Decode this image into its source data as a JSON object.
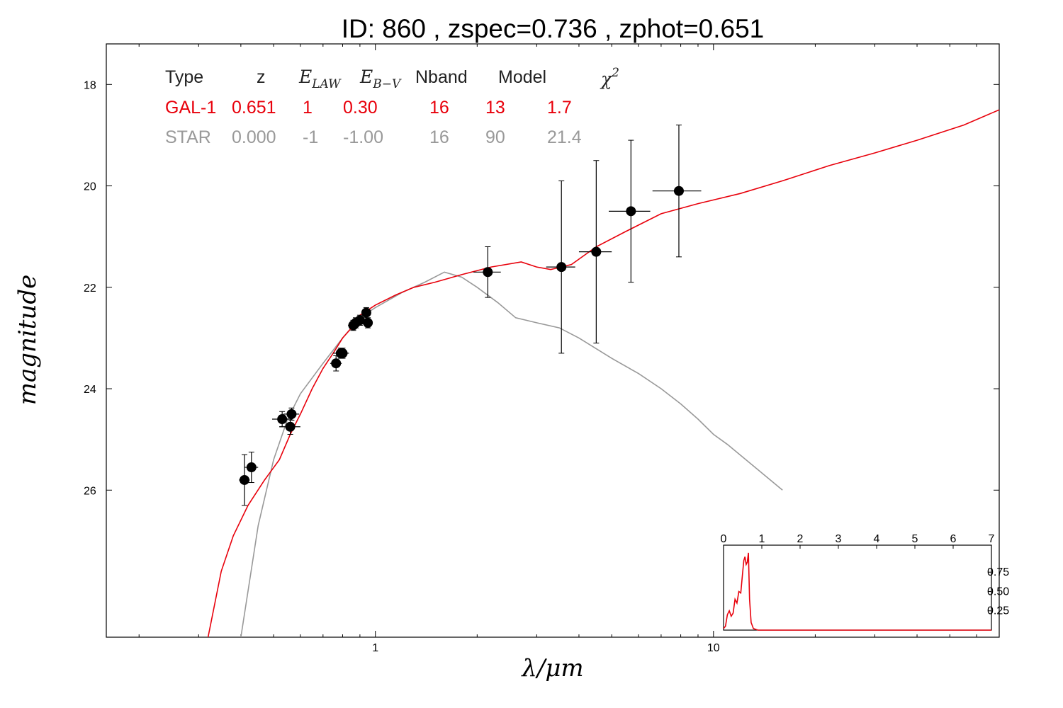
{
  "chart_data": {
    "type": "line",
    "title": "ID:  860   , zspec=0.736 , zphot=0.651",
    "xlabel": "λ/μm",
    "ylabel": "magnitude",
    "x_scale": "log",
    "xlim": [
      0.16,
      70
    ],
    "ylim": [
      28.9,
      17.2
    ],
    "x_tick_labels": [
      {
        "value": 1,
        "label": "1"
      },
      {
        "value": 10,
        "label": "10"
      }
    ],
    "y_ticks": [
      18,
      20,
      22,
      24,
      26
    ],
    "table": {
      "headers": [
        "Type",
        "z",
        "E",
        "E",
        "Nband",
        "Model",
        "χ"
      ],
      "header_subscripts": [
        "",
        "",
        "LAW",
        "B−V",
        "",
        "",
        ""
      ],
      "header_superscripts": [
        "",
        "",
        "",
        "",
        "",
        "",
        "2"
      ],
      "rows": [
        {
          "color": "#e8000b",
          "cells": [
            "GAL-1",
            "0.651",
            "1",
            "0.30",
            "16",
            "13",
            "1.7"
          ]
        },
        {
          "color": "#999999",
          "cells": [
            "STAR",
            "0.000",
            "-1",
            "-1.00",
            "16",
            "90",
            "21.4"
          ]
        }
      ]
    },
    "series": [
      {
        "color": "#e8000b",
        "points": [
          [
            0.32,
            28.9
          ],
          [
            0.35,
            27.6
          ],
          [
            0.38,
            26.9
          ],
          [
            0.42,
            26.3
          ],
          [
            0.47,
            25.8
          ],
          [
            0.52,
            25.4
          ],
          [
            0.56,
            24.9
          ],
          [
            0.6,
            24.5
          ],
          [
            0.65,
            24.0
          ],
          [
            0.7,
            23.6
          ],
          [
            0.75,
            23.3
          ],
          [
            0.8,
            23.0
          ],
          [
            0.85,
            22.8
          ],
          [
            0.9,
            22.55
          ],
          [
            1.0,
            22.35
          ],
          [
            1.15,
            22.15
          ],
          [
            1.3,
            22.0
          ],
          [
            1.5,
            21.9
          ],
          [
            1.8,
            21.75
          ],
          [
            2.2,
            21.6
          ],
          [
            2.7,
            21.5
          ],
          [
            3.0,
            21.6
          ],
          [
            3.3,
            21.65
          ],
          [
            3.8,
            21.55
          ],
          [
            4.5,
            21.2
          ],
          [
            5.5,
            20.9
          ],
          [
            7.0,
            20.55
          ],
          [
            9.0,
            20.35
          ],
          [
            12.0,
            20.15
          ],
          [
            16.0,
            19.9
          ],
          [
            22.0,
            19.6
          ],
          [
            30.0,
            19.35
          ],
          [
            40.0,
            19.1
          ],
          [
            55.0,
            18.8
          ],
          [
            70.0,
            18.5
          ]
        ]
      },
      {
        "color": "#999999",
        "points": [
          [
            0.4,
            28.9
          ],
          [
            0.45,
            26.7
          ],
          [
            0.5,
            25.4
          ],
          [
            0.55,
            24.6
          ],
          [
            0.6,
            24.1
          ],
          [
            0.7,
            23.5
          ],
          [
            0.8,
            23.0
          ],
          [
            0.9,
            22.6
          ],
          [
            1.0,
            22.4
          ],
          [
            1.2,
            22.1
          ],
          [
            1.4,
            21.9
          ],
          [
            1.6,
            21.7
          ],
          [
            1.8,
            21.8
          ],
          [
            2.0,
            22.0
          ],
          [
            2.3,
            22.3
          ],
          [
            2.6,
            22.6
          ],
          [
            3.0,
            22.7
          ],
          [
            3.5,
            22.8
          ],
          [
            4.0,
            23.0
          ],
          [
            5.0,
            23.4
          ],
          [
            6.0,
            23.7
          ],
          [
            7.0,
            24.0
          ],
          [
            8.0,
            24.3
          ],
          [
            9.0,
            24.6
          ],
          [
            10.0,
            24.9
          ],
          [
            11.0,
            25.1
          ],
          [
            13.0,
            25.5
          ],
          [
            16.0,
            26.0
          ]
        ]
      }
    ],
    "points_with_errors": [
      {
        "x": 0.41,
        "y": 25.8,
        "xerr": 0.015,
        "yerr": 0.5
      },
      {
        "x": 0.43,
        "y": 25.55,
        "xerr": 0.02,
        "yerr": 0.3
      },
      {
        "x": 0.53,
        "y": 24.6,
        "xerr": 0.035,
        "yerr": 0.15
      },
      {
        "x": 0.56,
        "y": 24.75,
        "xerr": 0.04,
        "yerr": 0.15
      },
      {
        "x": 0.565,
        "y": 24.5,
        "xerr": 0.03,
        "yerr": 0.12
      },
      {
        "x": 0.765,
        "y": 23.5,
        "xerr": 0.03,
        "yerr": 0.15
      },
      {
        "x": 0.79,
        "y": 23.3,
        "xerr": 0.04,
        "yerr": 0.1
      },
      {
        "x": 0.8,
        "y": 23.3,
        "xerr": 0.035,
        "yerr": 0.1
      },
      {
        "x": 0.86,
        "y": 22.75,
        "xerr": 0.03,
        "yerr": 0.1
      },
      {
        "x": 0.875,
        "y": 22.7,
        "xerr": 0.035,
        "yerr": 0.1
      },
      {
        "x": 0.9,
        "y": 22.65,
        "xerr": 0.03,
        "yerr": 0.1
      },
      {
        "x": 0.94,
        "y": 22.5,
        "xerr": 0.03,
        "yerr": 0.1
      },
      {
        "x": 0.95,
        "y": 22.7,
        "xerr": 0.03,
        "yerr": 0.1
      },
      {
        "x": 2.15,
        "y": 21.7,
        "xerr": 0.2,
        "yerr": 0.5
      },
      {
        "x": 3.55,
        "y": 21.6,
        "xerr": 0.35,
        "yerr": 1.7
      },
      {
        "x": 4.5,
        "y": 21.3,
        "xerr": 0.5,
        "yerr": 1.8
      },
      {
        "x": 5.7,
        "y": 20.5,
        "xerr": 0.8,
        "yerr": 1.4
      },
      {
        "x": 7.9,
        "y": 20.1,
        "xerr": 1.3,
        "yerr": 1.3
      }
    ],
    "inset": {
      "xlim": [
        0,
        7
      ],
      "ylim": [
        0,
        1.1
      ],
      "x_ticks": [
        0,
        1,
        2,
        3,
        4,
        5,
        6,
        7
      ],
      "y_ticks": [
        0.25,
        0.5,
        0.75
      ],
      "y_tick_labels": [
        "0.25",
        "0.50",
        "0.75"
      ],
      "color": "#e8000b",
      "pdf": [
        [
          0.0,
          0.02
        ],
        [
          0.05,
          0.05
        ],
        [
          0.1,
          0.2
        ],
        [
          0.15,
          0.25
        ],
        [
          0.2,
          0.18
        ],
        [
          0.25,
          0.22
        ],
        [
          0.3,
          0.4
        ],
        [
          0.35,
          0.35
        ],
        [
          0.4,
          0.5
        ],
        [
          0.45,
          0.48
        ],
        [
          0.5,
          0.75
        ],
        [
          0.53,
          0.9
        ],
        [
          0.56,
          0.95
        ],
        [
          0.59,
          0.85
        ],
        [
          0.62,
          0.88
        ],
        [
          0.65,
          1.0
        ],
        [
          0.68,
          0.4
        ],
        [
          0.72,
          0.1
        ],
        [
          0.78,
          0.02
        ],
        [
          0.9,
          0.0
        ],
        [
          7.0,
          0.0
        ]
      ]
    }
  }
}
